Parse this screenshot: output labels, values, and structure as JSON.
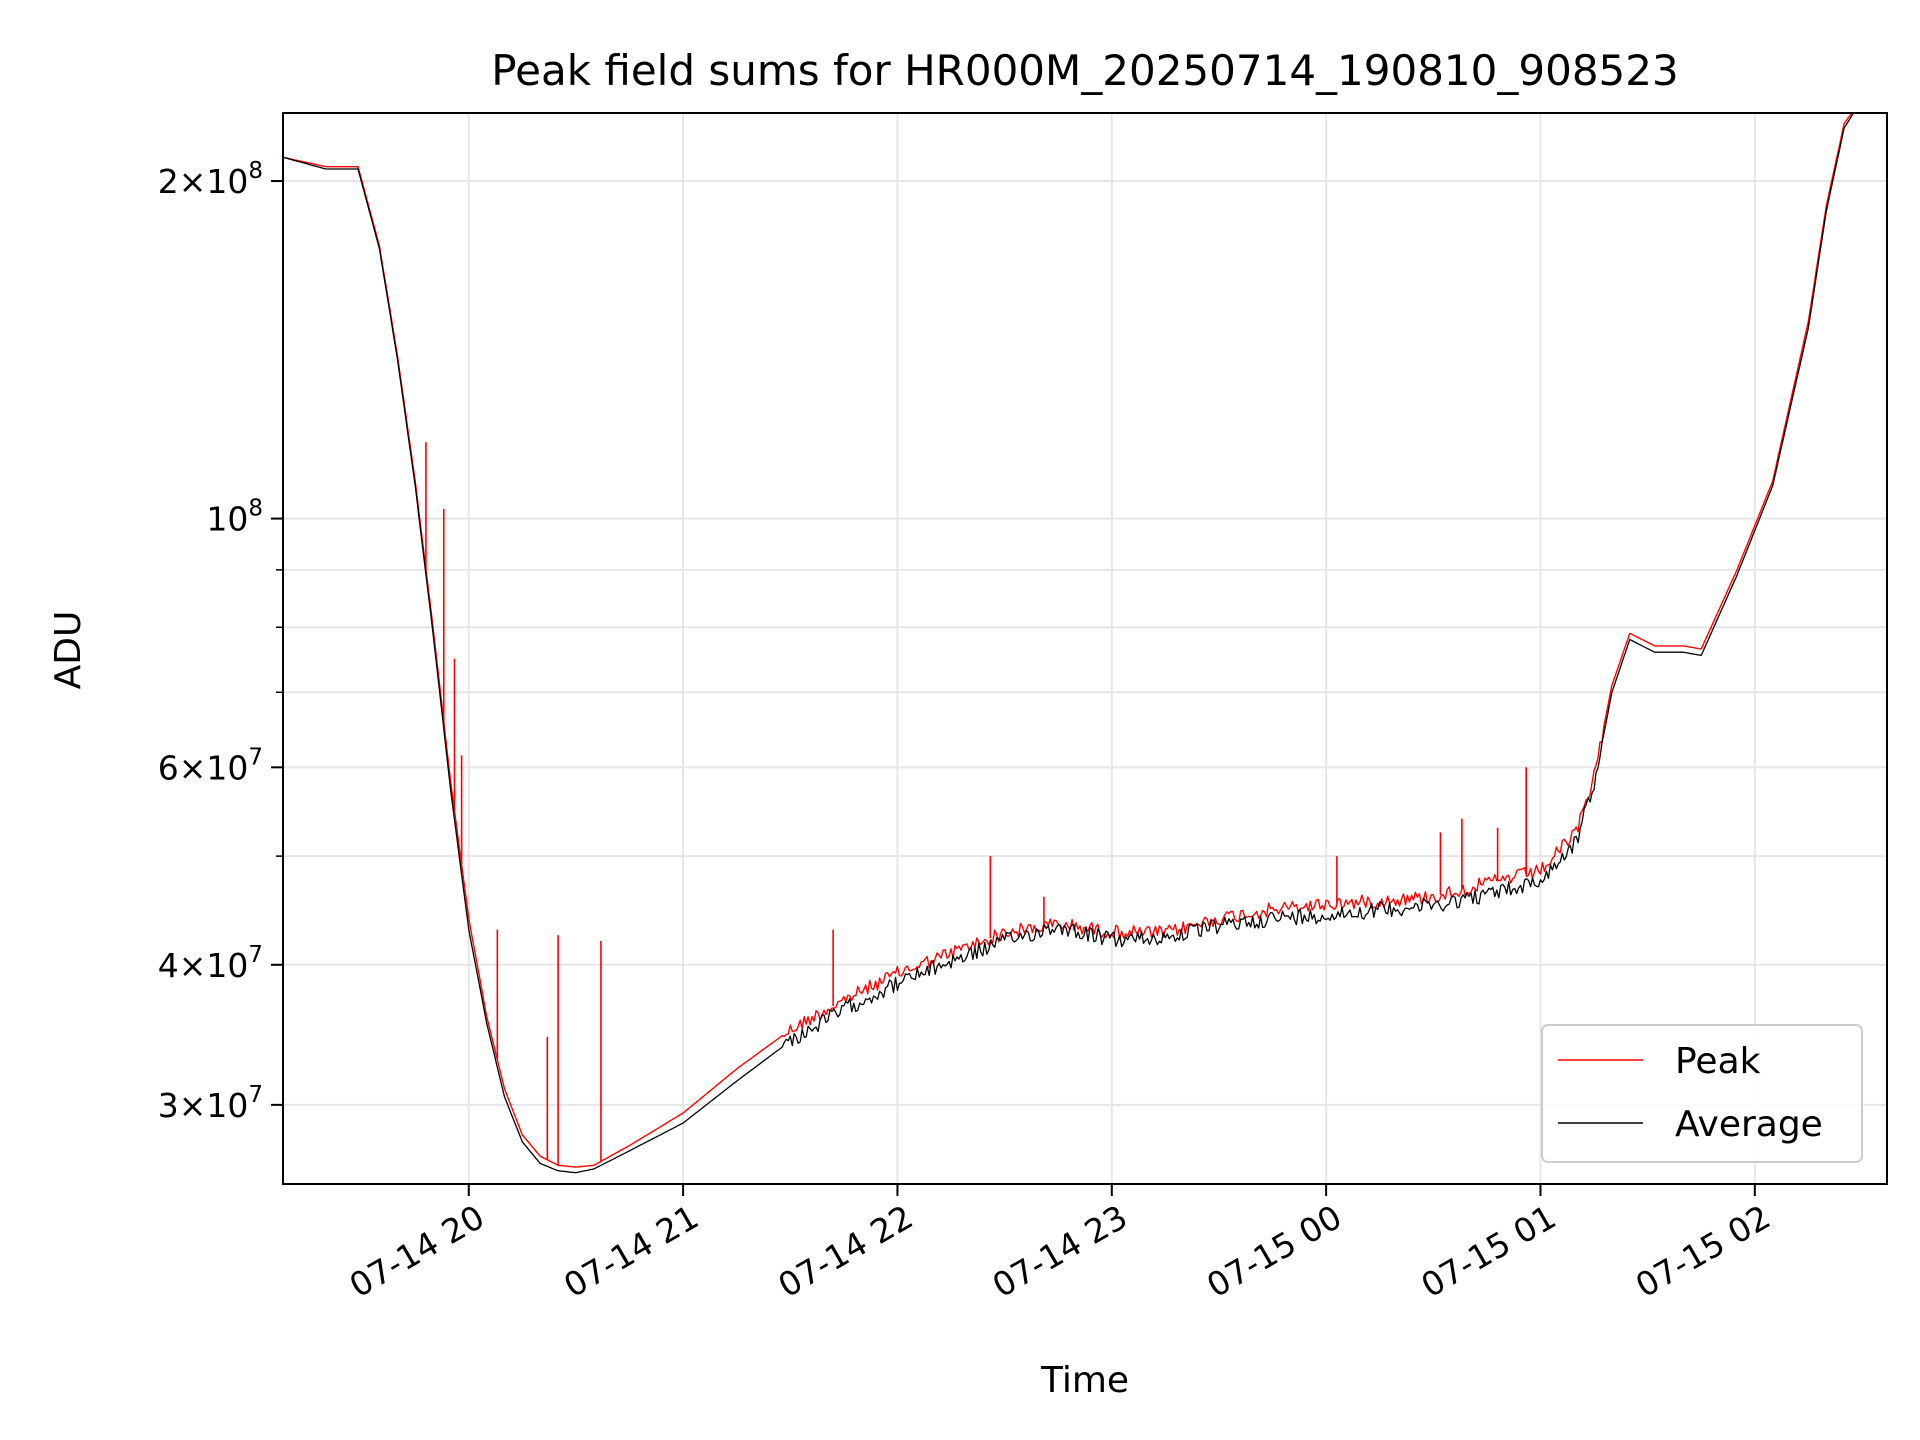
{
  "chart_data": {
    "type": "line",
    "title": "Peak field sums for HR000M_20250714_190810_908523",
    "xlabel": "Time",
    "ylabel": "ADU",
    "y_scale": "log",
    "grid": true,
    "legend_position": "lower-right",
    "xlim": [
      "2025-07-14 19:08",
      "2025-07-15 02:37"
    ],
    "ylim": [
      25500000,
      230000000
    ],
    "x_ticks": [
      {
        "at": "2025-07-14 20:00",
        "label": "07-14 20"
      },
      {
        "at": "2025-07-14 21:00",
        "label": "07-14 21"
      },
      {
        "at": "2025-07-14 22:00",
        "label": "07-14 22"
      },
      {
        "at": "2025-07-14 23:00",
        "label": "07-14 23"
      },
      {
        "at": "2025-07-15 00:00",
        "label": "07-15 00"
      },
      {
        "at": "2025-07-15 01:00",
        "label": "07-15 01"
      },
      {
        "at": "2025-07-15 02:00",
        "label": "07-15 02"
      }
    ],
    "y_ticks": [
      {
        "value": 200000000,
        "mant": "2",
        "exp": "8"
      },
      {
        "value": 100000000,
        "mant": "",
        "exp": "8"
      },
      {
        "value": 60000000,
        "mant": "6",
        "exp": "7"
      },
      {
        "value": 40000000,
        "mant": "4",
        "exp": "7"
      },
      {
        "value": 30000000,
        "mant": "3",
        "exp": "7"
      }
    ],
    "y_minor_ticks": [
      50000000,
      70000000,
      80000000,
      90000000
    ],
    "series": [
      {
        "name": "Peak",
        "color": "#ff0000",
        "points": [
          [
            "2025-07-14 19:08",
            210000000
          ],
          [
            "2025-07-14 19:20",
            206000000
          ],
          [
            "2025-07-14 19:29",
            206000000
          ],
          [
            "2025-07-14 19:35",
            175000000
          ],
          [
            "2025-07-14 19:40",
            140000000
          ],
          [
            "2025-07-14 19:45",
            108000000
          ],
          [
            "2025-07-14 19:50",
            80000000
          ],
          [
            "2025-07-14 19:55",
            58000000
          ],
          [
            "2025-07-14 20:00",
            44000000
          ],
          [
            "2025-07-14 20:05",
            36000000
          ],
          [
            "2025-07-14 20:10",
            31000000
          ],
          [
            "2025-07-14 20:15",
            28200000
          ],
          [
            "2025-07-14 20:20",
            27000000
          ],
          [
            "2025-07-14 20:25",
            26500000
          ],
          [
            "2025-07-14 20:30",
            26400000
          ],
          [
            "2025-07-14 20:35",
            26500000
          ],
          [
            "2025-07-14 20:45",
            27600000
          ],
          [
            "2025-07-14 21:00",
            29500000
          ],
          [
            "2025-07-14 21:15",
            32300000
          ],
          [
            "2025-07-14 21:30",
            35000000
          ],
          [
            "2025-07-14 21:45",
            37200000
          ],
          [
            "2025-07-14 22:00",
            39300000
          ],
          [
            "2025-07-14 22:15",
            41000000
          ],
          [
            "2025-07-14 22:30",
            42700000
          ],
          [
            "2025-07-14 22:45",
            43500000
          ],
          [
            "2025-07-14 23:00",
            42800000
          ],
          [
            "2025-07-14 23:15",
            42700000
          ],
          [
            "2025-07-14 23:30",
            44000000
          ],
          [
            "2025-07-14 23:45",
            44800000
          ],
          [
            "2025-07-15 00:00",
            45300000
          ],
          [
            "2025-07-15 00:15",
            45600000
          ],
          [
            "2025-07-15 00:30",
            46000000
          ],
          [
            "2025-07-15 00:45",
            47300000
          ],
          [
            "2025-07-15 01:00",
            48500000
          ],
          [
            "2025-07-15 01:10",
            52500000
          ],
          [
            "2025-07-15 01:15",
            59000000
          ],
          [
            "2025-07-15 01:20",
            71000000
          ],
          [
            "2025-07-15 01:25",
            79000000
          ],
          [
            "2025-07-15 01:32",
            77000000
          ],
          [
            "2025-07-15 01:40",
            77000000
          ],
          [
            "2025-07-15 01:45",
            76500000
          ],
          [
            "2025-07-15 01:55",
            90000000
          ],
          [
            "2025-07-15 02:05",
            108000000
          ],
          [
            "2025-07-15 02:15",
            150000000
          ],
          [
            "2025-07-15 02:20",
            190000000
          ],
          [
            "2025-07-15 02:25",
            225000000
          ],
          [
            "2025-07-15 02:28",
            232000000
          ]
        ],
        "spikes": [
          [
            "2025-07-14 19:48",
            117000000
          ],
          [
            "2025-07-14 19:53",
            102000000
          ],
          [
            "2025-07-14 19:56",
            75000000
          ],
          [
            "2025-07-14 19:58",
            61500000
          ],
          [
            "2025-07-14 20:08",
            43000000
          ],
          [
            "2025-07-14 20:22",
            34500000
          ],
          [
            "2025-07-14 20:25",
            42500000
          ],
          [
            "2025-07-14 20:37",
            42000000
          ],
          [
            "2025-07-14 21:42",
            43000000
          ],
          [
            "2025-07-14 22:26",
            50000000
          ],
          [
            "2025-07-14 22:41",
            46000000
          ],
          [
            "2025-07-15 00:03",
            50000000
          ],
          [
            "2025-07-15 00:32",
            52500000
          ],
          [
            "2025-07-15 00:38",
            54000000
          ],
          [
            "2025-07-15 00:48",
            53000000
          ],
          [
            "2025-07-15 00:56",
            60000000
          ]
        ]
      },
      {
        "name": "Average",
        "color": "#000000",
        "points": [
          [
            "2025-07-14 19:08",
            210000000
          ],
          [
            "2025-07-14 19:20",
            205000000
          ],
          [
            "2025-07-14 19:29",
            205000000
          ],
          [
            "2025-07-14 19:35",
            174000000
          ],
          [
            "2025-07-14 19:40",
            139000000
          ],
          [
            "2025-07-14 19:45",
            107000000
          ],
          [
            "2025-07-14 19:50",
            79000000
          ],
          [
            "2025-07-14 19:55",
            57000000
          ],
          [
            "2025-07-14 20:00",
            43000000
          ],
          [
            "2025-07-14 20:05",
            35500000
          ],
          [
            "2025-07-14 20:10",
            30500000
          ],
          [
            "2025-07-14 20:15",
            27800000
          ],
          [
            "2025-07-14 20:20",
            26600000
          ],
          [
            "2025-07-14 20:25",
            26200000
          ],
          [
            "2025-07-14 20:30",
            26100000
          ],
          [
            "2025-07-14 20:35",
            26300000
          ],
          [
            "2025-07-14 20:45",
            27300000
          ],
          [
            "2025-07-14 21:00",
            28900000
          ],
          [
            "2025-07-14 21:15",
            31500000
          ],
          [
            "2025-07-14 21:30",
            34200000
          ],
          [
            "2025-07-14 21:45",
            36500000
          ],
          [
            "2025-07-14 22:00",
            38500000
          ],
          [
            "2025-07-14 22:15",
            40300000
          ],
          [
            "2025-07-14 22:30",
            42000000
          ],
          [
            "2025-07-14 22:45",
            43300000
          ],
          [
            "2025-07-14 23:00",
            42100000
          ],
          [
            "2025-07-14 23:15",
            42300000
          ],
          [
            "2025-07-14 23:30",
            43300000
          ],
          [
            "2025-07-14 23:45",
            44000000
          ],
          [
            "2025-07-15 00:00",
            44300000
          ],
          [
            "2025-07-15 00:15",
            44800000
          ],
          [
            "2025-07-15 00:30",
            45200000
          ],
          [
            "2025-07-15 00:45",
            46200000
          ],
          [
            "2025-07-15 01:00",
            47500000
          ],
          [
            "2025-07-15 01:10",
            51500000
          ],
          [
            "2025-07-15 01:15",
            58000000
          ],
          [
            "2025-07-15 01:20",
            70000000
          ],
          [
            "2025-07-15 01:25",
            78000000
          ],
          [
            "2025-07-15 01:32",
            76000000
          ],
          [
            "2025-07-15 01:40",
            76000000
          ],
          [
            "2025-07-15 01:45",
            75500000
          ],
          [
            "2025-07-15 01:55",
            89000000
          ],
          [
            "2025-07-15 02:05",
            107000000
          ],
          [
            "2025-07-15 02:15",
            148000000
          ],
          [
            "2025-07-15 02:20",
            188000000
          ],
          [
            "2025-07-15 02:25",
            223000000
          ],
          [
            "2025-07-15 02:28",
            231000000
          ]
        ]
      }
    ]
  }
}
